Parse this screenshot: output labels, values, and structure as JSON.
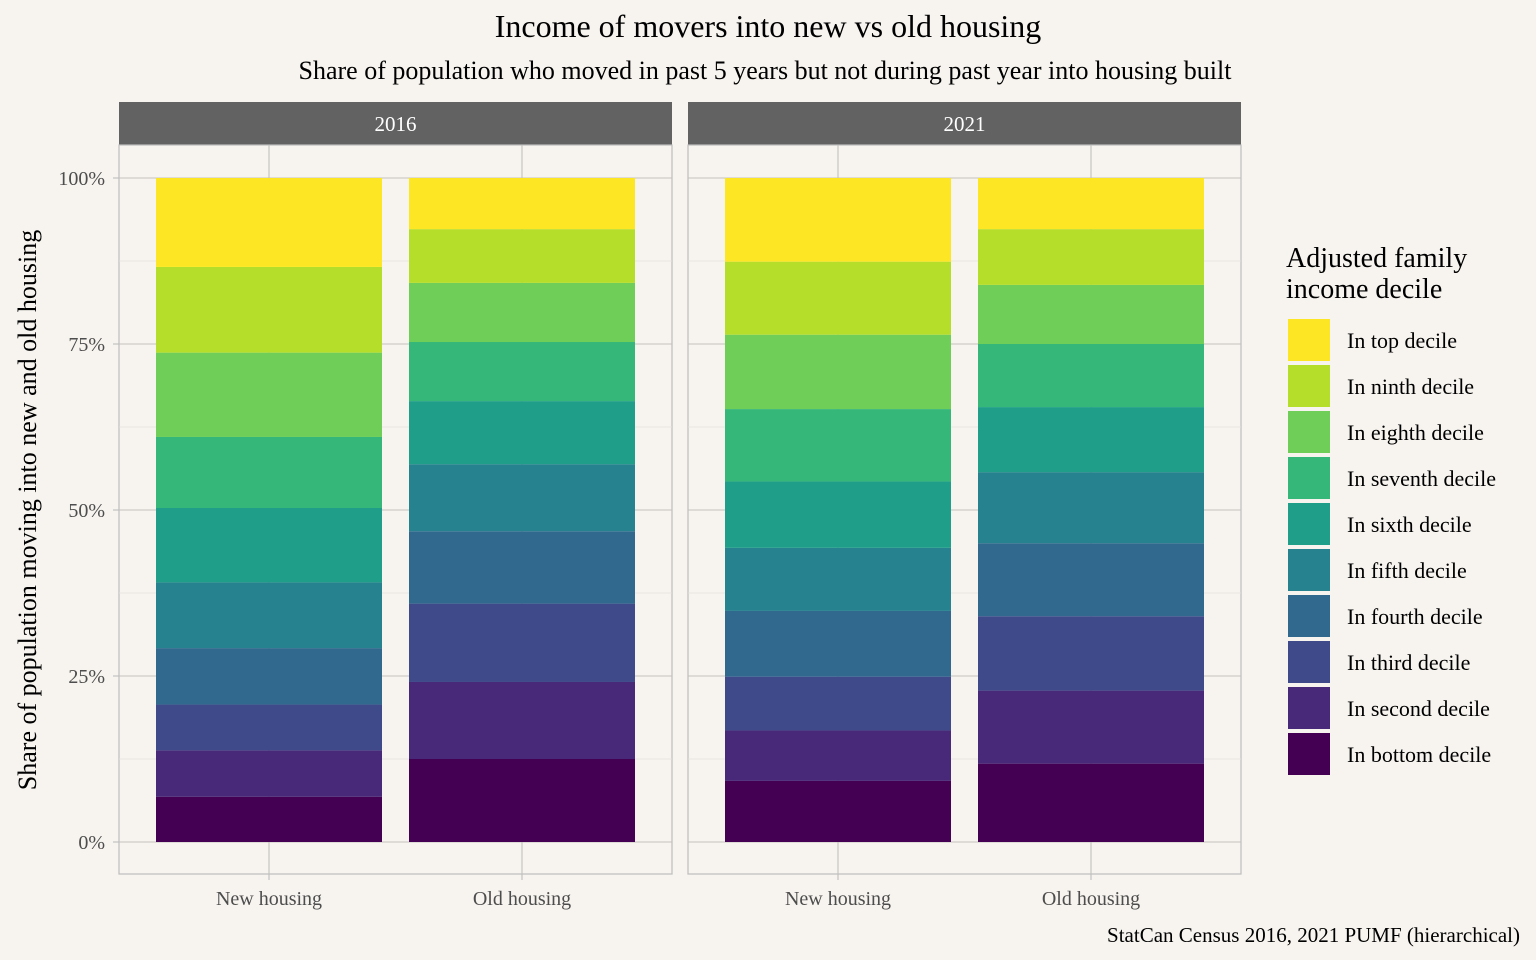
{
  "chart_data": {
    "type": "bar",
    "stacked": true,
    "title": "Income of movers into new vs old housing",
    "subtitle": "Share of population who moved in past 5 years but not during past year into housing built",
    "ylabel": "Share of population moving into new and old housing",
    "xlabel": "",
    "ylim": [
      0,
      1
    ],
    "y_ticks": [
      "0%",
      "25%",
      "50%",
      "75%",
      "100%"
    ],
    "y_tick_values": [
      0,
      0.25,
      0.5,
      0.75,
      1
    ],
    "grid": true,
    "legend": {
      "title_lines": [
        "Adjusted family",
        "income decile"
      ],
      "placement": "right"
    },
    "caption": "StatCan Census 2016, 2021 PUMF (hierarchical)",
    "categories": [
      "New housing",
      "Old housing"
    ],
    "series": [
      {
        "name": "In bottom decile",
        "color": "#440154"
      },
      {
        "name": "In second decile",
        "color": "#482878"
      },
      {
        "name": "In third decile",
        "color": "#3e4a89"
      },
      {
        "name": "In fourth decile",
        "color": "#31688e"
      },
      {
        "name": "In fifth decile",
        "color": "#26828e"
      },
      {
        "name": "In sixth decile",
        "color": "#1f9e89"
      },
      {
        "name": "In seventh decile",
        "color": "#35b779"
      },
      {
        "name": "In eighth decile",
        "color": "#6ece58"
      },
      {
        "name": "In ninth decile",
        "color": "#b5de2b"
      },
      {
        "name": "In top decile",
        "color": "#fde725"
      }
    ],
    "facets": [
      {
        "label": "2016",
        "bars": [
          {
            "category": "New housing",
            "values": [
              0.068,
              0.07,
              0.069,
              0.085,
              0.099,
              0.112,
              0.107,
              0.127,
              0.129,
              0.134
            ]
          },
          {
            "category": "Old housing",
            "values": [
              0.125,
              0.116,
              0.118,
              0.109,
              0.101,
              0.095,
              0.089,
              0.089,
              0.081,
              0.077
            ]
          }
        ]
      },
      {
        "label": "2021",
        "bars": [
          {
            "category": "New housing",
            "values": [
              0.092,
              0.076,
              0.081,
              0.099,
              0.095,
              0.1,
              0.109,
              0.112,
              0.11,
              0.126
            ]
          },
          {
            "category": "Old housing",
            "values": [
              0.118,
              0.11,
              0.112,
              0.11,
              0.107,
              0.098,
              0.095,
              0.089,
              0.084,
              0.077
            ]
          }
        ]
      }
    ]
  }
}
